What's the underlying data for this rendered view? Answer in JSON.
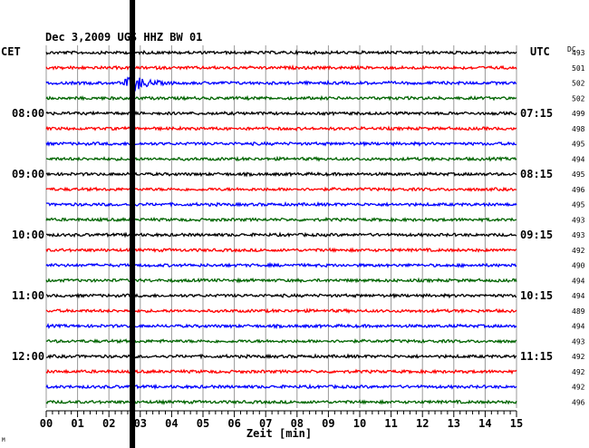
{
  "chart_data": {
    "type": "line",
    "title": "Dec 3,2009   UGS HHZ BW 01",
    "left_label": "CET",
    "right_label": "UTC",
    "dc_label": "DC",
    "xlabel": "Zeit [min]",
    "x_ticks": [
      "00",
      "01",
      "02",
      "03",
      "04",
      "05",
      "06",
      "07",
      "08",
      "09",
      "10",
      "11",
      "12",
      "13",
      "14",
      "15"
    ],
    "xlim": [
      0,
      15
    ],
    "grid": true,
    "trace_colors": [
      "#000000",
      "#ff0000",
      "#0000ff",
      "#006400"
    ],
    "left_time_labels": [
      {
        "trace": 4,
        "label": "08:00"
      },
      {
        "trace": 8,
        "label": "09:00"
      },
      {
        "trace": 12,
        "label": "10:00"
      },
      {
        "trace": 16,
        "label": "11:00"
      },
      {
        "trace": 20,
        "label": "12:00"
      }
    ],
    "right_time_labels": [
      {
        "trace": 4,
        "label": "07:15"
      },
      {
        "trace": 8,
        "label": "08:15"
      },
      {
        "trace": 12,
        "label": "09:15"
      },
      {
        "trace": 16,
        "label": "10:15"
      },
      {
        "trace": 20,
        "label": "11:15"
      }
    ],
    "dc_values": [
      "493",
      "501",
      "502",
      "502",
      "499",
      "498",
      "495",
      "494",
      "495",
      "496",
      "495",
      "493",
      "493",
      "492",
      "490",
      "494",
      "494",
      "489",
      "494",
      "493",
      "492",
      "492",
      "492",
      "496"
    ],
    "events": [
      {
        "trace": 2,
        "minute": 2.8,
        "note": "earthquake signal"
      }
    ],
    "marker_line_minute": 2.75,
    "corner_mark": "M"
  }
}
